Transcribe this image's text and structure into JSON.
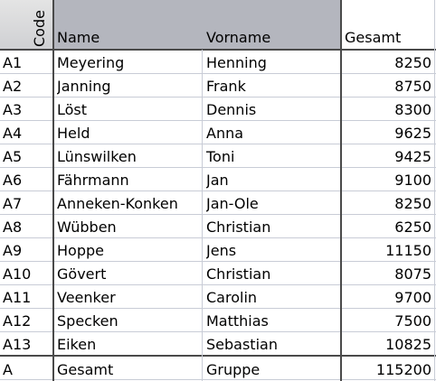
{
  "headers": {
    "code": "Code",
    "name": "Name",
    "vorname": "Vorname",
    "gesamt": "Gesamt"
  },
  "rows": [
    {
      "code": "A1",
      "name": "Meyering",
      "vorname": "Henning",
      "gesamt": "8250"
    },
    {
      "code": "A2",
      "name": "Janning",
      "vorname": "Frank",
      "gesamt": "8750"
    },
    {
      "code": "A3",
      "name": "Löst",
      "vorname": "Dennis",
      "gesamt": "8300"
    },
    {
      "code": "A4",
      "name": "Held",
      "vorname": "Anna",
      "gesamt": "9625"
    },
    {
      "code": "A5",
      "name": "Lünswilken",
      "vorname": "Toni",
      "gesamt": "9425"
    },
    {
      "code": "A6",
      "name": "Fährmann",
      "vorname": "Jan",
      "gesamt": "9100"
    },
    {
      "code": "A7",
      "name": "Anneken-Konken",
      "vorname": "Jan-Ole",
      "gesamt": "8250"
    },
    {
      "code": "A8",
      "name": "Wübben",
      "vorname": "Christian",
      "gesamt": "6250"
    },
    {
      "code": "A9",
      "name": "Hoppe",
      "vorname": "Jens",
      "gesamt": "11150"
    },
    {
      "code": "A10",
      "name": "Gövert",
      "vorname": "Christian",
      "gesamt": "8075"
    },
    {
      "code": "A11",
      "name": "Veenker",
      "vorname": "Carolin",
      "gesamt": "9700"
    },
    {
      "code": "A12",
      "name": "Specken",
      "vorname": "Matthias",
      "gesamt": "7500"
    },
    {
      "code": "A13",
      "name": "Eiken",
      "vorname": "Sebastian",
      "gesamt": "10825"
    }
  ],
  "total": {
    "code": "A",
    "name": "Gesamt",
    "vorname": "Gruppe",
    "gesamt": "115200"
  },
  "colors": {
    "header_band": "#b4b6be",
    "grid": "#c8ccd6",
    "thick_border": "#4a4a4a"
  }
}
